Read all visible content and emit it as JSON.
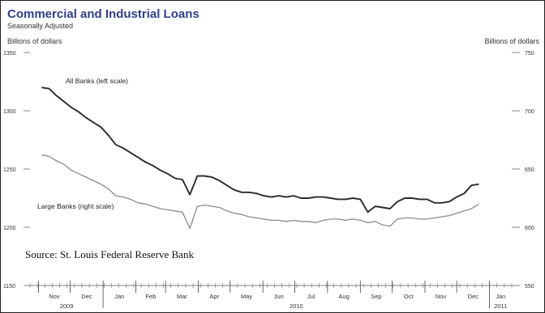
{
  "chart_data": {
    "type": "line",
    "title": "Commercial and Industrial Loans",
    "subtitle": "Seasonally Adjusted",
    "y_left_label": "Billions of dollars",
    "y_right_label": "Billions of dollars",
    "source": "Source: St. Louis Federal Reserve Bank",
    "y_left_ticks": [
      "1150",
      "1200",
      "1250",
      "1300",
      "1350"
    ],
    "y_right_ticks": [
      "550",
      "600",
      "650",
      "700",
      "750"
    ],
    "y_left_range": [
      1150,
      1350
    ],
    "y_right_range": [
      550,
      750
    ],
    "months": [
      "Nov",
      "Dec",
      "Jan",
      "Feb",
      "Mar",
      "Apr",
      "May",
      "Jun",
      "Jul",
      "Aug",
      "Sep",
      "Oct",
      "Nov",
      "Dec",
      "Jan"
    ],
    "years": [
      "2009",
      "2010",
      "2011"
    ],
    "grid": false,
    "series": [
      {
        "name": "All Banks (left scale)",
        "axis": "left",
        "color": "#2a2a2a",
        "x": [
          "2009-11-04",
          "2009-11-11",
          "2009-11-18",
          "2009-11-25",
          "2009-12-02",
          "2009-12-09",
          "2009-12-16",
          "2009-12-23",
          "2009-12-30",
          "2010-01-06",
          "2010-01-13",
          "2010-01-20",
          "2010-01-27",
          "2010-02-03",
          "2010-02-10",
          "2010-02-17",
          "2010-02-24",
          "2010-03-03",
          "2010-03-10",
          "2010-03-17",
          "2010-03-24",
          "2010-03-31",
          "2010-04-07",
          "2010-04-14",
          "2010-04-21",
          "2010-04-28",
          "2010-05-05",
          "2010-05-12",
          "2010-05-19",
          "2010-05-26",
          "2010-06-02",
          "2010-06-09",
          "2010-06-16",
          "2010-06-23",
          "2010-06-30",
          "2010-07-07",
          "2010-07-14",
          "2010-07-21",
          "2010-07-28",
          "2010-08-04",
          "2010-08-11",
          "2010-08-18",
          "2010-08-25",
          "2010-09-01",
          "2010-09-08",
          "2010-09-15",
          "2010-09-22",
          "2010-09-29",
          "2010-10-06",
          "2010-10-13",
          "2010-10-20",
          "2010-10-27",
          "2010-11-03",
          "2010-11-10",
          "2010-11-17",
          "2010-11-24",
          "2010-12-01",
          "2010-12-08",
          "2010-12-15",
          "2010-12-22"
        ],
        "values": [
          1320,
          1319,
          1313,
          1308,
          1303,
          1299,
          1294,
          1290,
          1286,
          1279,
          1271,
          1268,
          1264,
          1260,
          1256,
          1253,
          1249,
          1246,
          1242,
          1241,
          1228,
          1244,
          1244,
          1243,
          1240,
          1236,
          1232,
          1230,
          1230,
          1229,
          1227,
          1226,
          1227,
          1226,
          1227,
          1225,
          1225,
          1226,
          1226,
          1225,
          1224,
          1224,
          1225,
          1224,
          1213,
          1218,
          1217,
          1216,
          1222,
          1225,
          1225,
          1224,
          1224,
          1221,
          1221,
          1222,
          1226,
          1229,
          1236,
          1237
        ]
      },
      {
        "name": "Large Banks (right scale)",
        "axis": "right",
        "color": "#8c8c8c",
        "x": [
          "2009-11-04",
          "2009-11-11",
          "2009-11-18",
          "2009-11-25",
          "2009-12-02",
          "2009-12-09",
          "2009-12-16",
          "2009-12-23",
          "2009-12-30",
          "2010-01-06",
          "2010-01-13",
          "2010-01-20",
          "2010-01-27",
          "2010-02-03",
          "2010-02-10",
          "2010-02-17",
          "2010-02-24",
          "2010-03-03",
          "2010-03-10",
          "2010-03-17",
          "2010-03-24",
          "2010-03-31",
          "2010-04-07",
          "2010-04-14",
          "2010-04-21",
          "2010-04-28",
          "2010-05-05",
          "2010-05-12",
          "2010-05-19",
          "2010-05-26",
          "2010-06-02",
          "2010-06-09",
          "2010-06-16",
          "2010-06-23",
          "2010-06-30",
          "2010-07-07",
          "2010-07-14",
          "2010-07-21",
          "2010-07-28",
          "2010-08-04",
          "2010-08-11",
          "2010-08-18",
          "2010-08-25",
          "2010-09-01",
          "2010-09-08",
          "2010-09-15",
          "2010-09-22",
          "2010-09-29",
          "2010-10-06",
          "2010-10-13",
          "2010-10-20",
          "2010-10-27",
          "2010-11-03",
          "2010-11-10",
          "2010-11-17",
          "2010-11-24",
          "2010-12-01",
          "2010-12-08",
          "2010-12-15",
          "2010-12-22"
        ],
        "values": [
          662,
          661,
          657,
          654,
          649,
          646,
          643,
          640,
          637,
          633,
          627,
          626,
          624,
          621,
          620,
          618,
          616,
          615,
          614,
          613,
          599,
          618,
          619,
          618,
          617,
          614,
          612,
          611,
          609,
          608,
          607,
          606,
          606,
          605,
          606,
          605,
          605,
          604,
          606,
          607,
          607,
          606,
          607,
          606,
          604,
          605,
          602,
          601,
          607,
          608,
          608,
          607,
          607,
          608,
          609,
          610,
          612,
          614,
          616,
          620
        ]
      }
    ]
  }
}
